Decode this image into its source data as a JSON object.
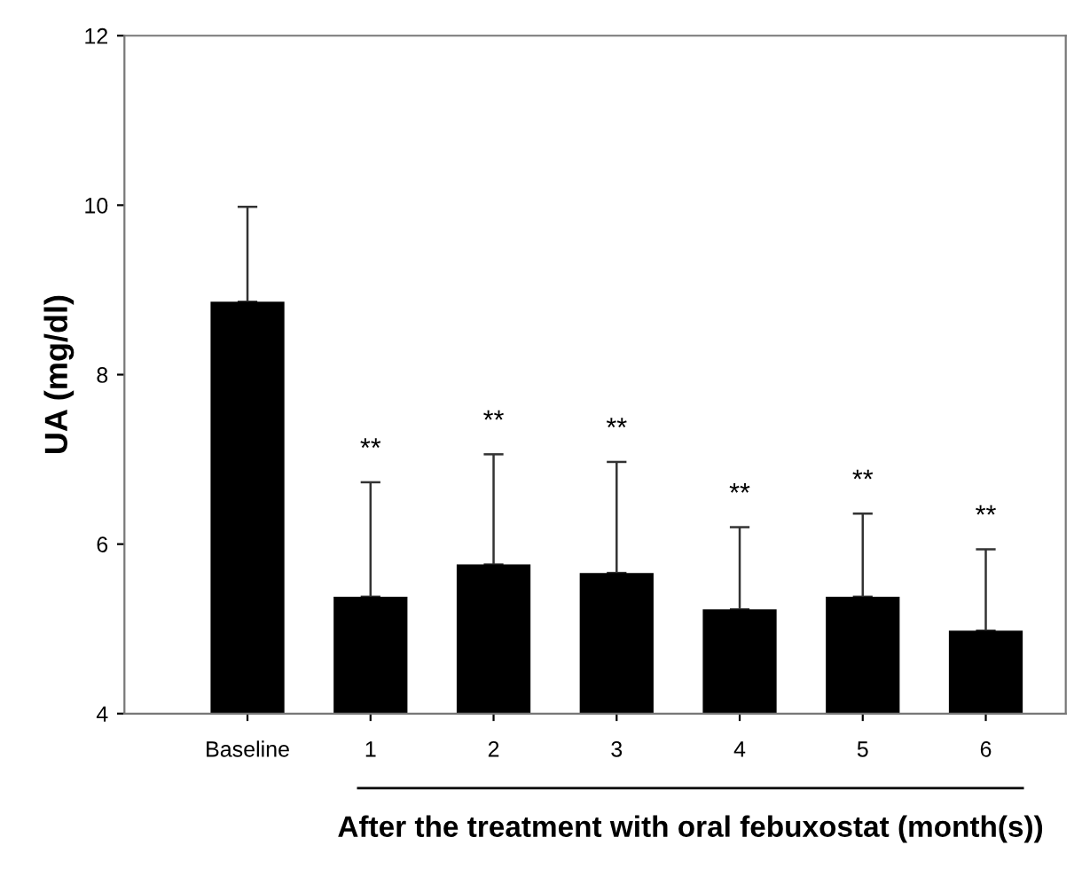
{
  "chart_data": {
    "type": "bar",
    "categories": [
      "Baseline",
      "1",
      "2",
      "3",
      "4",
      "5",
      "6"
    ],
    "values": [
      8.86,
      5.38,
      5.76,
      5.66,
      5.23,
      5.38,
      4.98
    ],
    "errors": [
      [
        8.86,
        9.98
      ],
      [
        5.38,
        6.73
      ],
      [
        5.76,
        7.06
      ],
      [
        5.66,
        6.97
      ],
      [
        5.23,
        6.2
      ],
      [
        5.38,
        6.36
      ],
      [
        4.98,
        5.94
      ]
    ],
    "color": "#000000",
    "ylabel": "UA (mg/dl)",
    "xlabel": "After the treatment with oral febuxostat (month(s))",
    "ylim": [
      4,
      12
    ],
    "yticks": [
      4,
      6,
      8,
      10,
      12
    ],
    "annotations": [
      "**",
      "**",
      "**",
      "**",
      "**",
      "**"
    ],
    "grid": false,
    "legend": false
  }
}
